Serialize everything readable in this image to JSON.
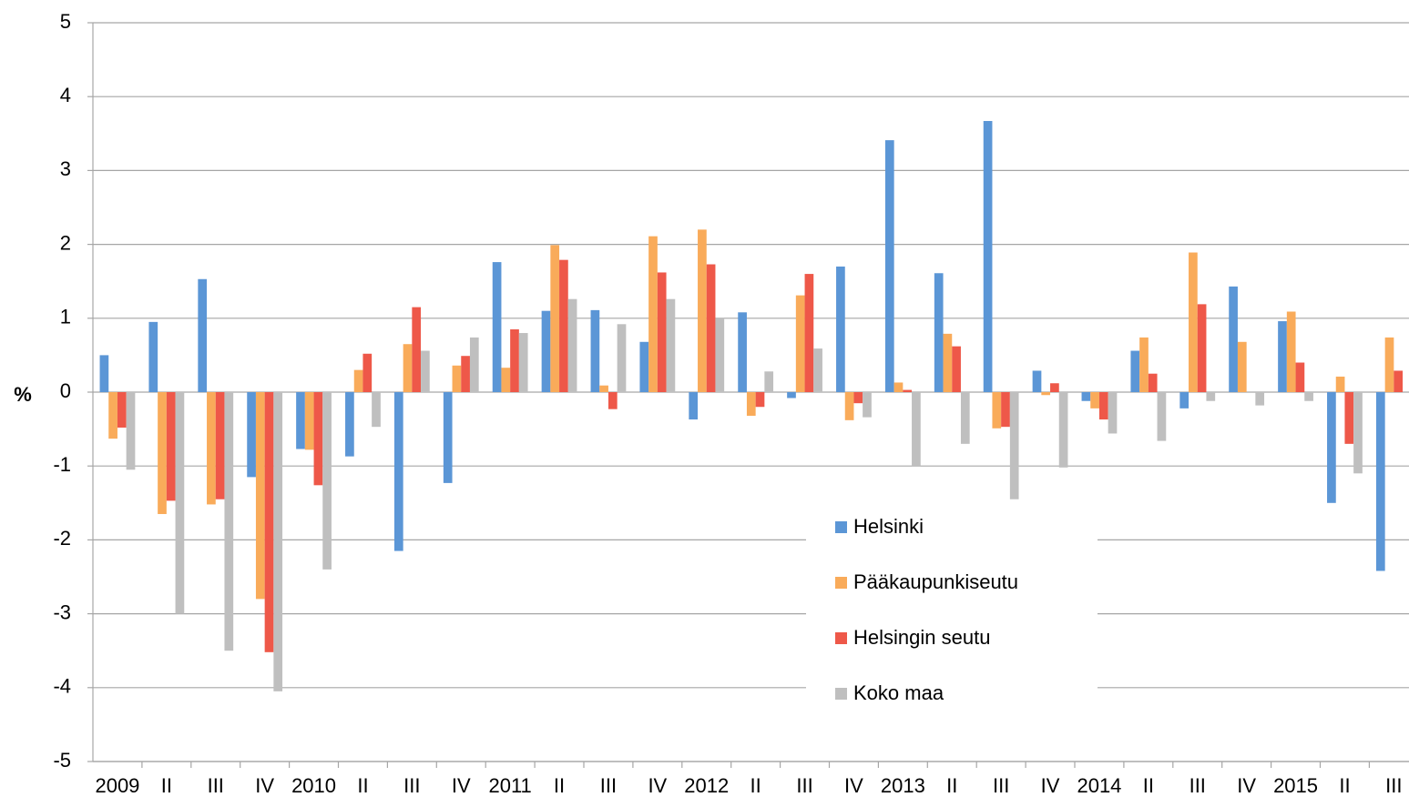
{
  "chart_data": {
    "type": "bar",
    "y_label": "%",
    "categories": [
      "2009",
      "II",
      "III",
      "IV",
      "2010",
      "II",
      "III",
      "IV",
      "2011",
      "II",
      "III",
      "IV",
      "2012",
      "II",
      "III",
      "IV",
      "2013",
      "II",
      "III",
      "IV",
      "2014",
      "II",
      "III",
      "IV",
      "2015",
      "II",
      "III"
    ],
    "series": [
      {
        "name": "Helsinki",
        "color": "#5b96d6",
        "values": [
          0.5,
          0.95,
          1.53,
          -1.15,
          -0.77,
          -0.87,
          -2.15,
          -1.23,
          1.76,
          1.1,
          1.11,
          0.68,
          -0.37,
          1.08,
          -0.08,
          1.7,
          3.41,
          1.61,
          3.67,
          0.29,
          -0.12,
          0.56,
          -0.22,
          1.43,
          0.96,
          -1.5,
          -2.42
        ]
      },
      {
        "name": "Pääkaupunkiseutu",
        "color": "#f9ab5a",
        "values": [
          -0.63,
          -1.65,
          -1.52,
          -2.8,
          -0.78,
          0.3,
          0.65,
          0.36,
          0.33,
          1.99,
          0.09,
          2.11,
          2.2,
          -0.32,
          1.31,
          -0.38,
          0.13,
          0.79,
          -0.49,
          -0.04,
          -0.22,
          0.74,
          1.89,
          0.68,
          1.09,
          0.21,
          0.74
        ]
      },
      {
        "name": "Helsingin seutu",
        "color": "#ee5849",
        "values": [
          -0.48,
          -1.47,
          -1.45,
          -3.52,
          -1.26,
          0.52,
          1.15,
          0.49,
          0.85,
          1.79,
          -0.23,
          1.62,
          1.73,
          -0.2,
          1.6,
          -0.15,
          0.03,
          0.62,
          -0.47,
          0.12,
          -0.37,
          0.25,
          1.19,
          null,
          0.4,
          -0.7,
          0.29
        ]
      },
      {
        "name": "Koko maa",
        "color": "#bfbfbf",
        "values": [
          -1.05,
          -3.0,
          -3.5,
          -4.05,
          -2.4,
          -0.47,
          0.56,
          0.74,
          0.8,
          1.26,
          0.92,
          1.26,
          1.0,
          0.28,
          0.59,
          -0.34,
          -1.0,
          -0.7,
          -1.45,
          -1.02,
          -0.56,
          -0.66,
          -0.12,
          -0.18,
          -0.12,
          -1.1,
          null
        ]
      }
    ],
    "ylim": [
      -5,
      5
    ],
    "yticks": [
      -5,
      -4,
      -3,
      -2,
      -1,
      0,
      1,
      2,
      3,
      4,
      5
    ],
    "grid": true
  }
}
